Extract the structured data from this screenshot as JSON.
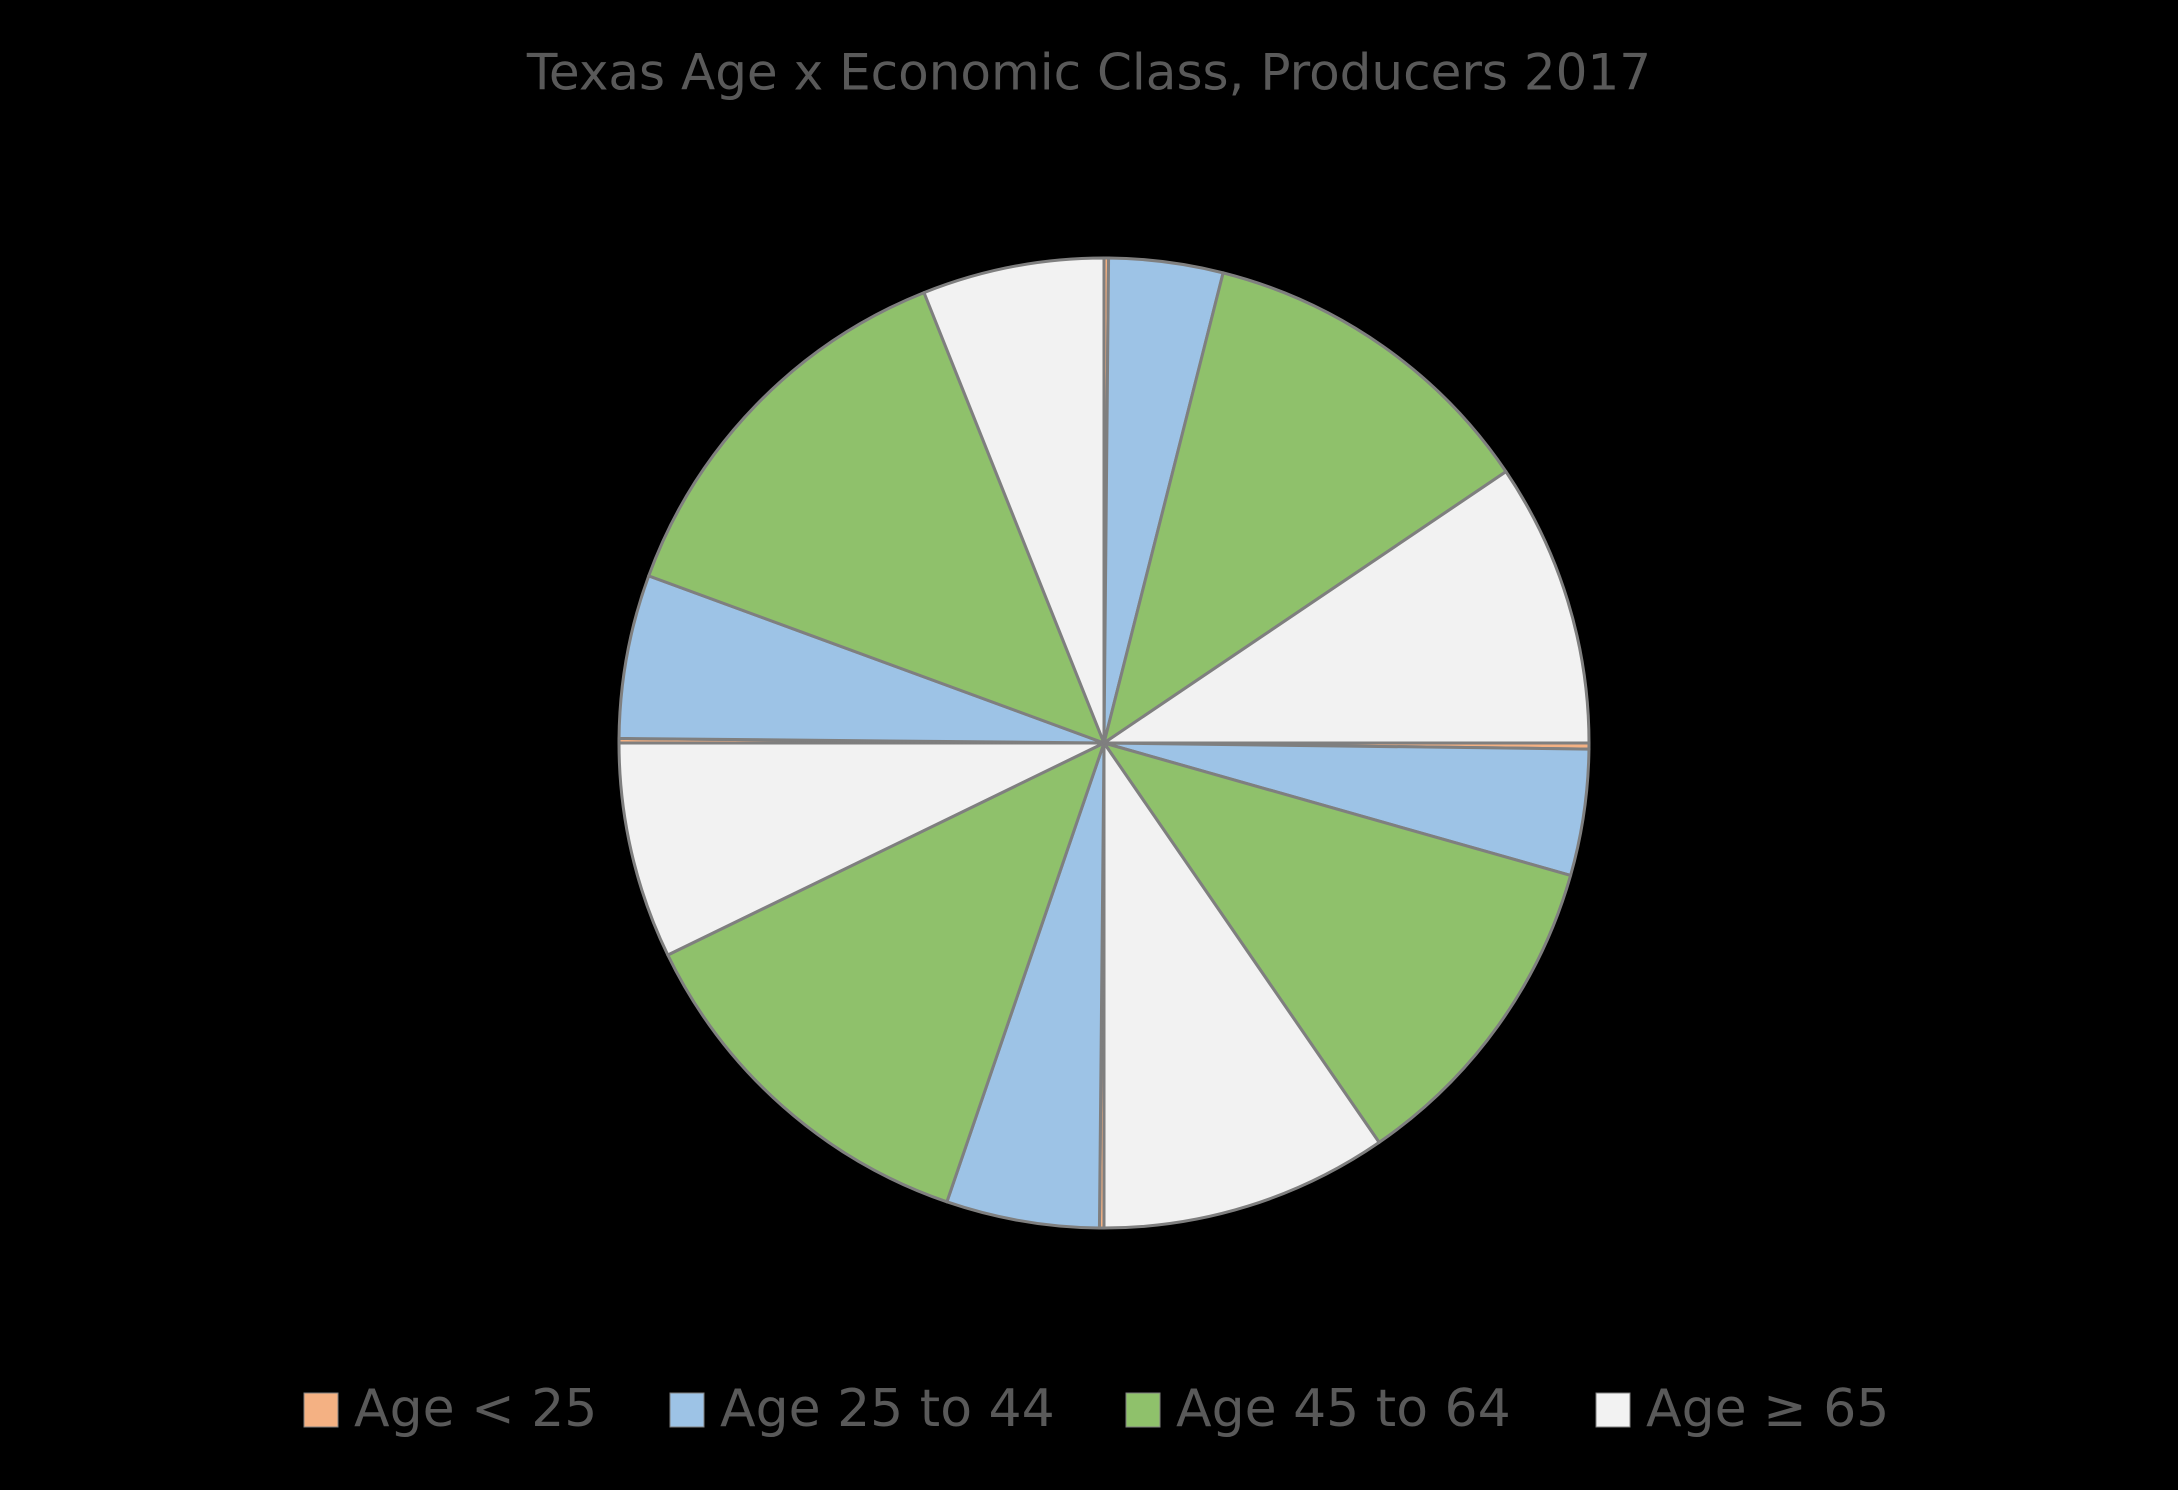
{
  "chart_data": {
    "type": "pie",
    "title": "Texas Age x Economic Class, Producers 2017",
    "series": [
      {
        "name": "Age < 25",
        "color": "#f4b183",
        "values": [
          0.15,
          0.2,
          0.15,
          0.15
        ]
      },
      {
        "name": "Age 25 to 44",
        "color": "#9dc3e6",
        "values": [
          3.8,
          4.2,
          5.1,
          5.45
        ]
      },
      {
        "name": "Age 45 to 64",
        "color": "#8fc16b",
        "values": [
          11.6,
          11.0,
          12.55,
          13.35
        ]
      },
      {
        "name": "Age ≥ 65",
        "color": "#f2f2f2",
        "values": [
          9.45,
          9.6,
          7.2,
          6.05
        ]
      }
    ],
    "legend": "bottom"
  }
}
